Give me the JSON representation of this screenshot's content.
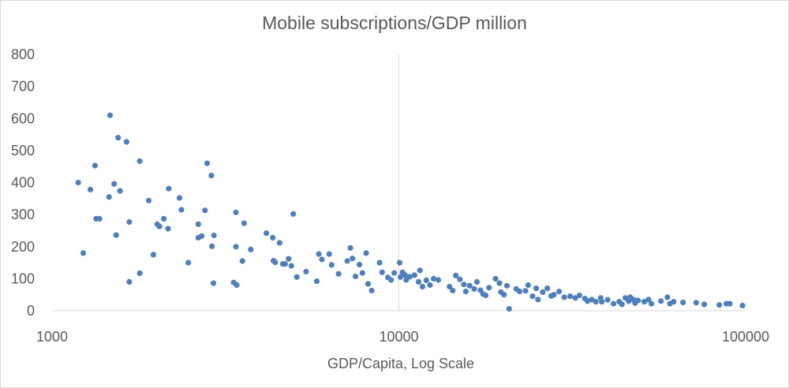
{
  "chart_data": {
    "type": "scatter",
    "title": "Mobile subscriptions/GDP million",
    "xlabel": "GDP/Capita, Log Scale",
    "ylabel": "",
    "x_scale": "log",
    "xlim": [
      1000,
      100000
    ],
    "ylim": [
      0,
      800
    ],
    "x_ticks": [
      "1000",
      "10000",
      "100000"
    ],
    "y_ticks": [
      "0",
      "100",
      "200",
      "300",
      "400",
      "500",
      "600",
      "700",
      "800"
    ],
    "grid": "vertical at x = 10000",
    "legend": "none",
    "marker_color": "#4f7fba",
    "points": [
      {
        "x": 1190,
        "y": 400
      },
      {
        "x": 1230,
        "y": 180
      },
      {
        "x": 1290,
        "y": 378
      },
      {
        "x": 1330,
        "y": 453
      },
      {
        "x": 1340,
        "y": 287
      },
      {
        "x": 1370,
        "y": 287
      },
      {
        "x": 1470,
        "y": 610
      },
      {
        "x": 1460,
        "y": 355
      },
      {
        "x": 1510,
        "y": 396
      },
      {
        "x": 1530,
        "y": 236
      },
      {
        "x": 1550,
        "y": 540
      },
      {
        "x": 1570,
        "y": 374
      },
      {
        "x": 1640,
        "y": 527
      },
      {
        "x": 1670,
        "y": 277
      },
      {
        "x": 1670,
        "y": 90
      },
      {
        "x": 1790,
        "y": 467
      },
      {
        "x": 1790,
        "y": 117
      },
      {
        "x": 1900,
        "y": 344
      },
      {
        "x": 1960,
        "y": 175
      },
      {
        "x": 2010,
        "y": 270
      },
      {
        "x": 2040,
        "y": 263
      },
      {
        "x": 2100,
        "y": 287
      },
      {
        "x": 2160,
        "y": 256
      },
      {
        "x": 2170,
        "y": 381
      },
      {
        "x": 2330,
        "y": 352
      },
      {
        "x": 2360,
        "y": 315
      },
      {
        "x": 2470,
        "y": 150
      },
      {
        "x": 2640,
        "y": 270
      },
      {
        "x": 2640,
        "y": 228
      },
      {
        "x": 2700,
        "y": 233
      },
      {
        "x": 2760,
        "y": 313
      },
      {
        "x": 2800,
        "y": 460
      },
      {
        "x": 2880,
        "y": 422
      },
      {
        "x": 2890,
        "y": 201
      },
      {
        "x": 2920,
        "y": 86
      },
      {
        "x": 2930,
        "y": 235
      },
      {
        "x": 3340,
        "y": 88
      },
      {
        "x": 3390,
        "y": 307
      },
      {
        "x": 3390,
        "y": 200
      },
      {
        "x": 3410,
        "y": 80
      },
      {
        "x": 3540,
        "y": 155
      },
      {
        "x": 3580,
        "y": 273
      },
      {
        "x": 3740,
        "y": 191
      },
      {
        "x": 4150,
        "y": 242
      },
      {
        "x": 4330,
        "y": 228
      },
      {
        "x": 4350,
        "y": 156
      },
      {
        "x": 4400,
        "y": 151
      },
      {
        "x": 4530,
        "y": 212
      },
      {
        "x": 4630,
        "y": 146
      },
      {
        "x": 4700,
        "y": 146
      },
      {
        "x": 4810,
        "y": 162
      },
      {
        "x": 4900,
        "y": 140
      },
      {
        "x": 4960,
        "y": 302
      },
      {
        "x": 5080,
        "y": 105
      },
      {
        "x": 5400,
        "y": 122
      },
      {
        "x": 5800,
        "y": 92
      },
      {
        "x": 5880,
        "y": 177
      },
      {
        "x": 6000,
        "y": 160
      },
      {
        "x": 6300,
        "y": 177
      },
      {
        "x": 6400,
        "y": 143
      },
      {
        "x": 6700,
        "y": 115
      },
      {
        "x": 7100,
        "y": 155
      },
      {
        "x": 7250,
        "y": 196
      },
      {
        "x": 7350,
        "y": 163
      },
      {
        "x": 7500,
        "y": 107
      },
      {
        "x": 7700,
        "y": 144
      },
      {
        "x": 7850,
        "y": 118
      },
      {
        "x": 8050,
        "y": 180
      },
      {
        "x": 8150,
        "y": 84
      },
      {
        "x": 8350,
        "y": 63
      },
      {
        "x": 8800,
        "y": 150
      },
      {
        "x": 8950,
        "y": 120
      },
      {
        "x": 9300,
        "y": 104
      },
      {
        "x": 9500,
        "y": 96
      },
      {
        "x": 9700,
        "y": 118
      },
      {
        "x": 10050,
        "y": 150
      },
      {
        "x": 10100,
        "y": 105
      },
      {
        "x": 10250,
        "y": 120
      },
      {
        "x": 10400,
        "y": 112
      },
      {
        "x": 10500,
        "y": 96
      },
      {
        "x": 10750,
        "y": 106
      },
      {
        "x": 11100,
        "y": 111
      },
      {
        "x": 11400,
        "y": 90
      },
      {
        "x": 11500,
        "y": 126
      },
      {
        "x": 11700,
        "y": 75
      },
      {
        "x": 12000,
        "y": 95
      },
      {
        "x": 12300,
        "y": 80
      },
      {
        "x": 12600,
        "y": 100
      },
      {
        "x": 13000,
        "y": 96
      },
      {
        "x": 14000,
        "y": 75
      },
      {
        "x": 14300,
        "y": 63
      },
      {
        "x": 14600,
        "y": 110
      },
      {
        "x": 15000,
        "y": 98
      },
      {
        "x": 15400,
        "y": 82
      },
      {
        "x": 15600,
        "y": 60
      },
      {
        "x": 16000,
        "y": 78
      },
      {
        "x": 16500,
        "y": 68
      },
      {
        "x": 16800,
        "y": 90
      },
      {
        "x": 17200,
        "y": 64
      },
      {
        "x": 17500,
        "y": 52
      },
      {
        "x": 17800,
        "y": 48
      },
      {
        "x": 18200,
        "y": 72
      },
      {
        "x": 19000,
        "y": 100
      },
      {
        "x": 19500,
        "y": 86
      },
      {
        "x": 19700,
        "y": 58
      },
      {
        "x": 20100,
        "y": 50
      },
      {
        "x": 20500,
        "y": 78
      },
      {
        "x": 20800,
        "y": 6
      },
      {
        "x": 21800,
        "y": 68
      },
      {
        "x": 22300,
        "y": 60
      },
      {
        "x": 23200,
        "y": 62
      },
      {
        "x": 23600,
        "y": 80
      },
      {
        "x": 24300,
        "y": 45
      },
      {
        "x": 24900,
        "y": 70
      },
      {
        "x": 25200,
        "y": 35
      },
      {
        "x": 26000,
        "y": 58
      },
      {
        "x": 26800,
        "y": 70
      },
      {
        "x": 27500,
        "y": 46
      },
      {
        "x": 28000,
        "y": 50
      },
      {
        "x": 29000,
        "y": 60
      },
      {
        "x": 30000,
        "y": 42
      },
      {
        "x": 31200,
        "y": 45
      },
      {
        "x": 32300,
        "y": 40
      },
      {
        "x": 33200,
        "y": 48
      },
      {
        "x": 34400,
        "y": 38
      },
      {
        "x": 35000,
        "y": 30
      },
      {
        "x": 36000,
        "y": 35
      },
      {
        "x": 37000,
        "y": 28
      },
      {
        "x": 38200,
        "y": 40
      },
      {
        "x": 38500,
        "y": 28
      },
      {
        "x": 40000,
        "y": 34
      },
      {
        "x": 41600,
        "y": 22
      },
      {
        "x": 43200,
        "y": 28
      },
      {
        "x": 44000,
        "y": 20
      },
      {
        "x": 45000,
        "y": 40
      },
      {
        "x": 46000,
        "y": 30
      },
      {
        "x": 46500,
        "y": 42
      },
      {
        "x": 47500,
        "y": 35
      },
      {
        "x": 48000,
        "y": 24
      },
      {
        "x": 49000,
        "y": 32
      },
      {
        "x": 51000,
        "y": 28
      },
      {
        "x": 52500,
        "y": 35
      },
      {
        "x": 53500,
        "y": 22
      },
      {
        "x": 57000,
        "y": 30
      },
      {
        "x": 59500,
        "y": 42
      },
      {
        "x": 60500,
        "y": 22
      },
      {
        "x": 62000,
        "y": 28
      },
      {
        "x": 66000,
        "y": 26
      },
      {
        "x": 72000,
        "y": 25
      },
      {
        "x": 76000,
        "y": 20
      },
      {
        "x": 84000,
        "y": 18
      },
      {
        "x": 88000,
        "y": 22
      },
      {
        "x": 90000,
        "y": 22
      },
      {
        "x": 98000,
        "y": 16
      }
    ]
  }
}
